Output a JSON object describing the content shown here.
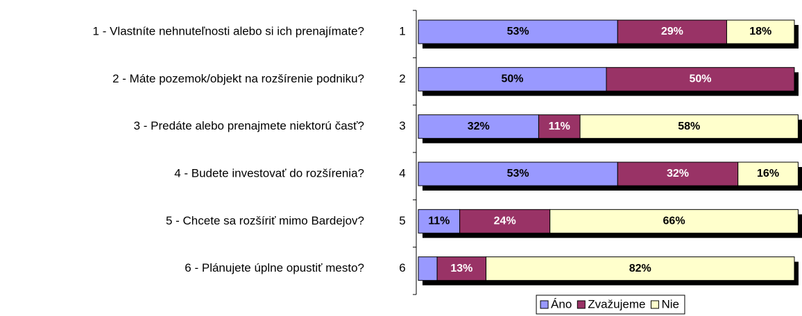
{
  "chart_data": {
    "type": "stacked-bar-horizontal",
    "categories": [
      "1",
      "2",
      "3",
      "4",
      "5",
      "6"
    ],
    "questions": [
      "1 - Vlastníte nehnuteľnosti alebo si ich prenajímate?",
      "2 - Máte pozemok/objekt na rozšírenie podniku?",
      "3 - Predáte alebo prenajmete niektorú časť?",
      "4 - Budete investovať do rozšírenia?",
      "5 - Chcete sa rozšíriť mimo Bardejov?",
      "6 - Plánujete úplne opustiť mesto?"
    ],
    "xlim": [
      0,
      100
    ],
    "legend": "bottom",
    "series": [
      {
        "name": "Áno",
        "color": "#9999ff",
        "label_color": "#000000",
        "values": [
          53,
          50,
          32,
          53,
          11,
          5
        ],
        "value_labels": [
          "53%",
          "50%",
          "32%",
          "53%",
          "11%",
          null
        ]
      },
      {
        "name": "Zvažujeme",
        "color": "#993366",
        "label_color": "#ffffff",
        "values": [
          29,
          50,
          11,
          32,
          24,
          13
        ],
        "value_labels": [
          "29%",
          "50%",
          "11%",
          "32%",
          "24%",
          "13%"
        ]
      },
      {
        "name": "Nie",
        "color": "#ffffcc",
        "label_color": "#000000",
        "values": [
          18,
          0,
          58,
          16,
          66,
          82
        ],
        "value_labels": [
          "18%",
          null,
          "58%",
          "16%",
          "66%",
          "82%"
        ]
      }
    ]
  }
}
